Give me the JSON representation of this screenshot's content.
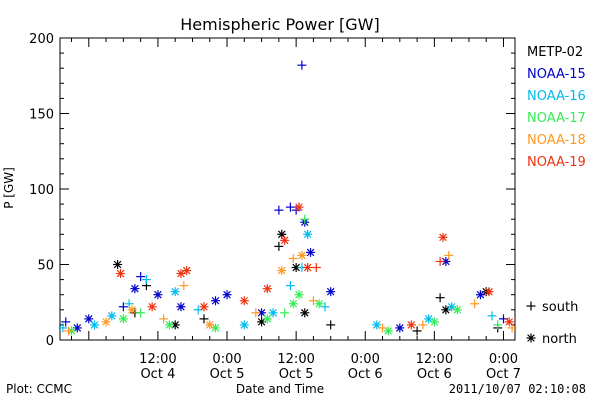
{
  "chart_data": {
    "type": "scatter",
    "title": "Hemispheric Power [GW]",
    "ylabel": "P [GW]",
    "xlabel": "Date and Time",
    "ylim": [
      0,
      200
    ],
    "xlim": [
      "2011-10-03 19:00",
      "2011-10-07 02:00"
    ],
    "y_ticks": [
      "0",
      "50",
      "100",
      "150",
      "200"
    ],
    "x_ticks": [
      {
        "time": "12:00",
        "date": "Oct 4",
        "at": "2011-10-04 12:00"
      },
      {
        "time": "0:00",
        "date": "Oct 5",
        "at": "2011-10-05 00:00"
      },
      {
        "time": "12:00",
        "date": "Oct 5",
        "at": "2011-10-05 12:00"
      },
      {
        "time": "0:00",
        "date": "Oct 6",
        "at": "2011-10-06 00:00"
      },
      {
        "time": "12:00",
        "date": "Oct 6",
        "at": "2011-10-06 12:00"
      },
      {
        "time": "0:00",
        "date": "Oct 7",
        "at": "2011-10-07 00:00"
      }
    ],
    "legend_position": "right",
    "grid": false,
    "marker_legend": [
      {
        "symbol": "+",
        "label": "south"
      },
      {
        "symbol": "*",
        "label": "north"
      }
    ],
    "series": [
      {
        "name": "METP-02",
        "color": "#000000",
        "points": [
          [
            "2011-10-04 05:00",
            50,
            "*"
          ],
          [
            "2011-10-04 08:00",
            18,
            "+"
          ],
          [
            "2011-10-04 10:00",
            36,
            "+"
          ],
          [
            "2011-10-04 15:00",
            10,
            "*"
          ],
          [
            "2011-10-04 20:00",
            14,
            "+"
          ],
          [
            "2011-10-05 06:00",
            12,
            "*"
          ],
          [
            "2011-10-05 09:00",
            62,
            "+"
          ],
          [
            "2011-10-05 09:30",
            70,
            "*"
          ],
          [
            "2011-10-05 12:00",
            48,
            "*"
          ],
          [
            "2011-10-05 13:30",
            18,
            "*"
          ],
          [
            "2011-10-05 18:00",
            10,
            "+"
          ],
          [
            "2011-10-06 09:00",
            6,
            "+"
          ],
          [
            "2011-10-06 13:00",
            28,
            "+"
          ],
          [
            "2011-10-06 14:00",
            20,
            "*"
          ],
          [
            "2011-10-06 21:00",
            32,
            "*"
          ],
          [
            "2011-10-06 23:00",
            8,
            "+"
          ]
        ]
      },
      {
        "name": "NOAA-15",
        "color": "#0000cc",
        "points": [
          [
            "2011-10-03 20:00",
            12,
            "+"
          ],
          [
            "2011-10-03 22:00",
            8,
            "*"
          ],
          [
            "2011-10-04 00:00",
            14,
            "*"
          ],
          [
            "2011-10-04 06:00",
            22,
            "+"
          ],
          [
            "2011-10-04 08:00",
            34,
            "*"
          ],
          [
            "2011-10-04 09:00",
            42,
            "+"
          ],
          [
            "2011-10-04 12:00",
            30,
            "*"
          ],
          [
            "2011-10-04 16:00",
            22,
            "*"
          ],
          [
            "2011-10-04 22:00",
            26,
            "*"
          ],
          [
            "2011-10-05 00:00",
            30,
            "*"
          ],
          [
            "2011-10-05 06:00",
            18,
            "*"
          ],
          [
            "2011-10-05 09:00",
            86,
            "+"
          ],
          [
            "2011-10-05 11:00",
            88,
            "+"
          ],
          [
            "2011-10-05 12:00",
            86,
            "+"
          ],
          [
            "2011-10-05 13:00",
            182,
            "+"
          ],
          [
            "2011-10-05 13:30",
            78,
            "*"
          ],
          [
            "2011-10-05 14:30",
            58,
            "*"
          ],
          [
            "2011-10-05 18:00",
            32,
            "*"
          ],
          [
            "2011-10-06 06:00",
            8,
            "*"
          ],
          [
            "2011-10-06 14:00",
            52,
            "*"
          ],
          [
            "2011-10-06 20:00",
            30,
            "*"
          ],
          [
            "2011-10-07 00:00",
            14,
            "+"
          ]
        ]
      },
      {
        "name": "NOAA-16",
        "color": "#00bbee",
        "points": [
          [
            "2011-10-03 19:30",
            8,
            "+"
          ],
          [
            "2011-10-04 01:00",
            10,
            "*"
          ],
          [
            "2011-10-04 04:00",
            16,
            "*"
          ],
          [
            "2011-10-04 07:00",
            24,
            "+"
          ],
          [
            "2011-10-04 10:00",
            40,
            "+"
          ],
          [
            "2011-10-04 15:00",
            32,
            "*"
          ],
          [
            "2011-10-04 19:00",
            20,
            "+"
          ],
          [
            "2011-10-05 03:00",
            10,
            "*"
          ],
          [
            "2011-10-05 08:00",
            18,
            "*"
          ],
          [
            "2011-10-05 11:00",
            36,
            "+"
          ],
          [
            "2011-10-05 13:00",
            48,
            "+"
          ],
          [
            "2011-10-05 14:00",
            70,
            "*"
          ],
          [
            "2011-10-05 17:00",
            22,
            "+"
          ],
          [
            "2011-10-06 02:00",
            10,
            "*"
          ],
          [
            "2011-10-06 11:00",
            14,
            "*"
          ],
          [
            "2011-10-06 15:00",
            22,
            "*"
          ],
          [
            "2011-10-06 22:00",
            16,
            "+"
          ]
        ]
      },
      {
        "name": "NOAA-17",
        "color": "#33ee55",
        "points": [
          [
            "2011-10-03 21:00",
            6,
            "*"
          ],
          [
            "2011-10-04 06:00",
            14,
            "*"
          ],
          [
            "2011-10-04 09:00",
            18,
            "+"
          ],
          [
            "2011-10-04 14:00",
            10,
            "*"
          ],
          [
            "2011-10-04 22:00",
            8,
            "*"
          ],
          [
            "2011-10-05 07:00",
            14,
            "*"
          ],
          [
            "2011-10-05 10:00",
            18,
            "+"
          ],
          [
            "2011-10-05 11:30",
            24,
            "*"
          ],
          [
            "2011-10-05 12:30",
            30,
            "*"
          ],
          [
            "2011-10-05 13:30",
            80,
            "+"
          ],
          [
            "2011-10-05 16:00",
            24,
            "*"
          ],
          [
            "2011-10-06 04:00",
            6,
            "*"
          ],
          [
            "2011-10-06 12:00",
            12,
            "*"
          ],
          [
            "2011-10-06 16:00",
            20,
            "*"
          ],
          [
            "2011-10-06 23:00",
            10,
            "+"
          ]
        ]
      },
      {
        "name": "NOAA-18",
        "color": "#ff9922",
        "points": [
          [
            "2011-10-03 20:30",
            6,
            "+"
          ],
          [
            "2011-10-04 03:00",
            12,
            "*"
          ],
          [
            "2011-10-04 07:30",
            20,
            "*"
          ],
          [
            "2011-10-04 13:00",
            14,
            "+"
          ],
          [
            "2011-10-04 16:30",
            36,
            "+"
          ],
          [
            "2011-10-04 21:00",
            10,
            "*"
          ],
          [
            "2011-10-05 05:00",
            18,
            "+"
          ],
          [
            "2011-10-05 09:30",
            46,
            "*"
          ],
          [
            "2011-10-05 11:30",
            54,
            "+"
          ],
          [
            "2011-10-05 13:00",
            56,
            "*"
          ],
          [
            "2011-10-05 15:00",
            26,
            "+"
          ],
          [
            "2011-10-06 03:00",
            8,
            "+"
          ],
          [
            "2011-10-06 10:00",
            10,
            "+"
          ],
          [
            "2011-10-06 14:30",
            56,
            "+"
          ],
          [
            "2011-10-06 19:00",
            24,
            "+"
          ],
          [
            "2011-10-07 01:30",
            8,
            "+"
          ]
        ]
      },
      {
        "name": "NOAA-19",
        "color": "#ee3311",
        "points": [
          [
            "2011-10-04 05:30",
            44,
            "*"
          ],
          [
            "2011-10-04 11:00",
            22,
            "*"
          ],
          [
            "2011-10-04 16:00",
            44,
            "*"
          ],
          [
            "2011-10-04 17:00",
            46,
            "*"
          ],
          [
            "2011-10-04 20:00",
            22,
            "*"
          ],
          [
            "2011-10-05 03:00",
            26,
            "*"
          ],
          [
            "2011-10-05 07:00",
            34,
            "*"
          ],
          [
            "2011-10-05 10:00",
            66,
            "*"
          ],
          [
            "2011-10-05 12:30",
            88,
            "*"
          ],
          [
            "2011-10-05 14:00",
            48,
            "*"
          ],
          [
            "2011-10-05 15:30",
            48,
            "+"
          ],
          [
            "2011-10-06 08:00",
            10,
            "*"
          ],
          [
            "2011-10-06 13:00",
            52,
            "+"
          ],
          [
            "2011-10-06 13:30",
            68,
            "*"
          ],
          [
            "2011-10-06 21:30",
            32,
            "*"
          ],
          [
            "2011-10-07 01:00",
            12,
            "*"
          ]
        ]
      }
    ]
  },
  "footer": {
    "plot_label": "Plot: CCMC",
    "timestamp": "2011/10/07 02:10:08"
  }
}
